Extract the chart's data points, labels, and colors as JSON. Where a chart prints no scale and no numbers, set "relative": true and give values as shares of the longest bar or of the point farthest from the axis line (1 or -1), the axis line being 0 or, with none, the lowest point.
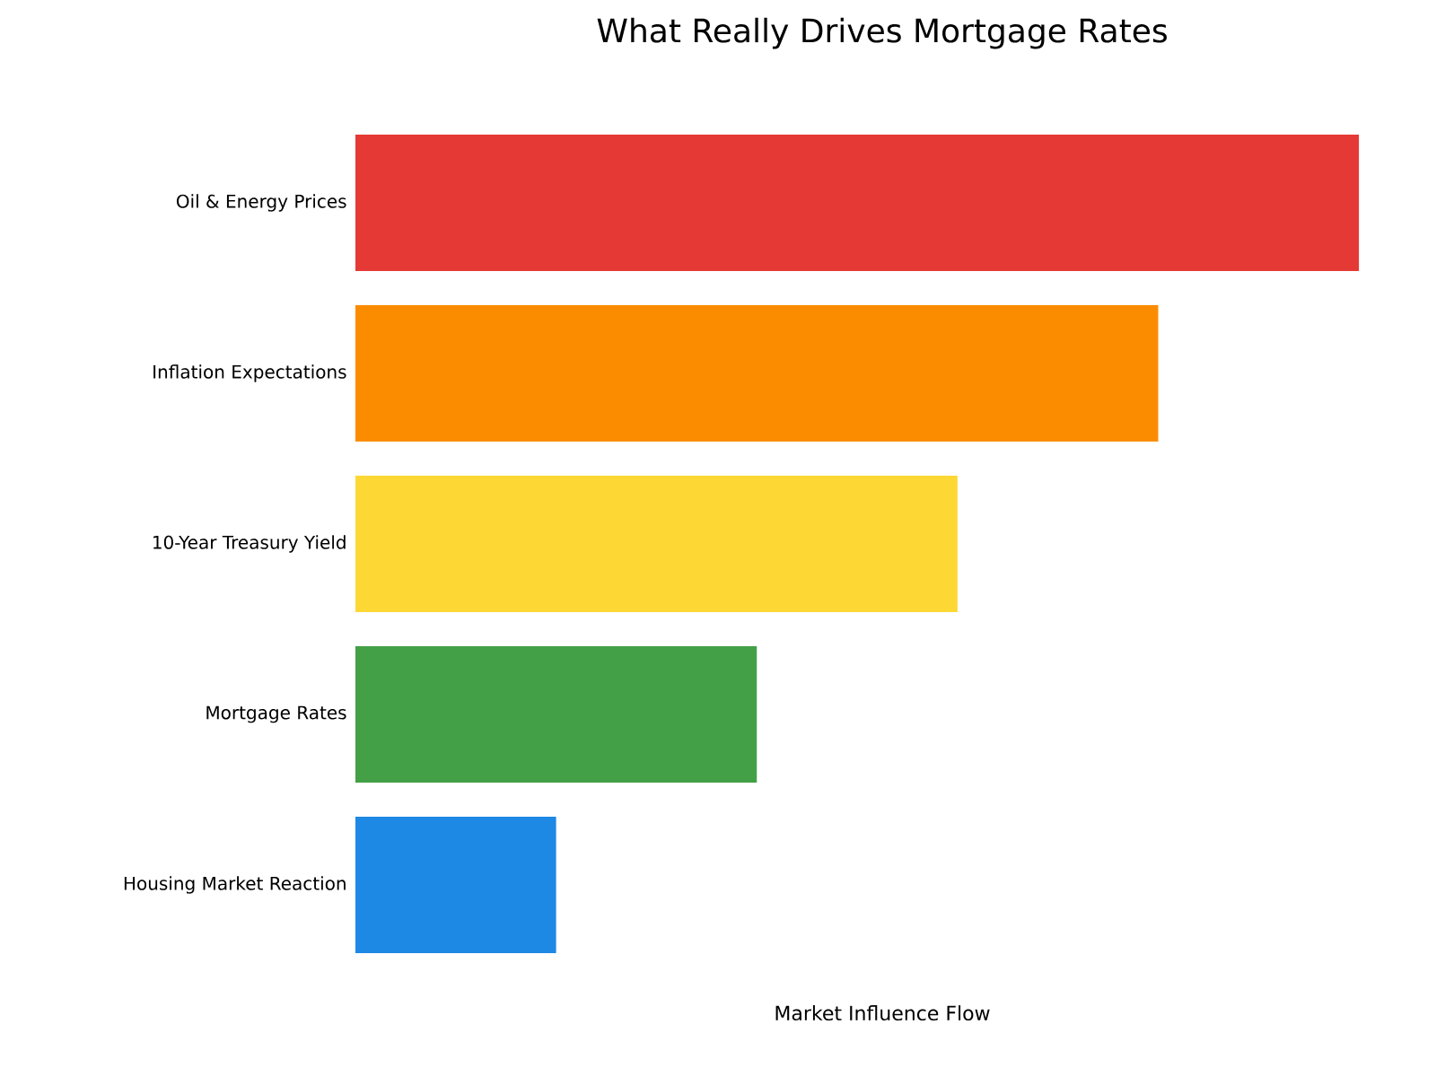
{
  "chart_data": {
    "type": "bar",
    "orientation": "horizontal",
    "relative": true,
    "title": "What Really Drives Mortgage Rates",
    "xlabel": "Market Influence Flow",
    "categories": [
      "Oil & Energy Prices",
      "Inflation Expectations",
      "10-Year Treasury Yield",
      "Mortgage Rates",
      "Housing Market Reaction"
    ],
    "values": [
      1,
      0.8,
      0.6,
      0.4,
      0.2
    ],
    "colors": [
      "#e53935",
      "#fb8c00",
      "#fdd835",
      "#43a047",
      "#1e88e5"
    ]
  }
}
